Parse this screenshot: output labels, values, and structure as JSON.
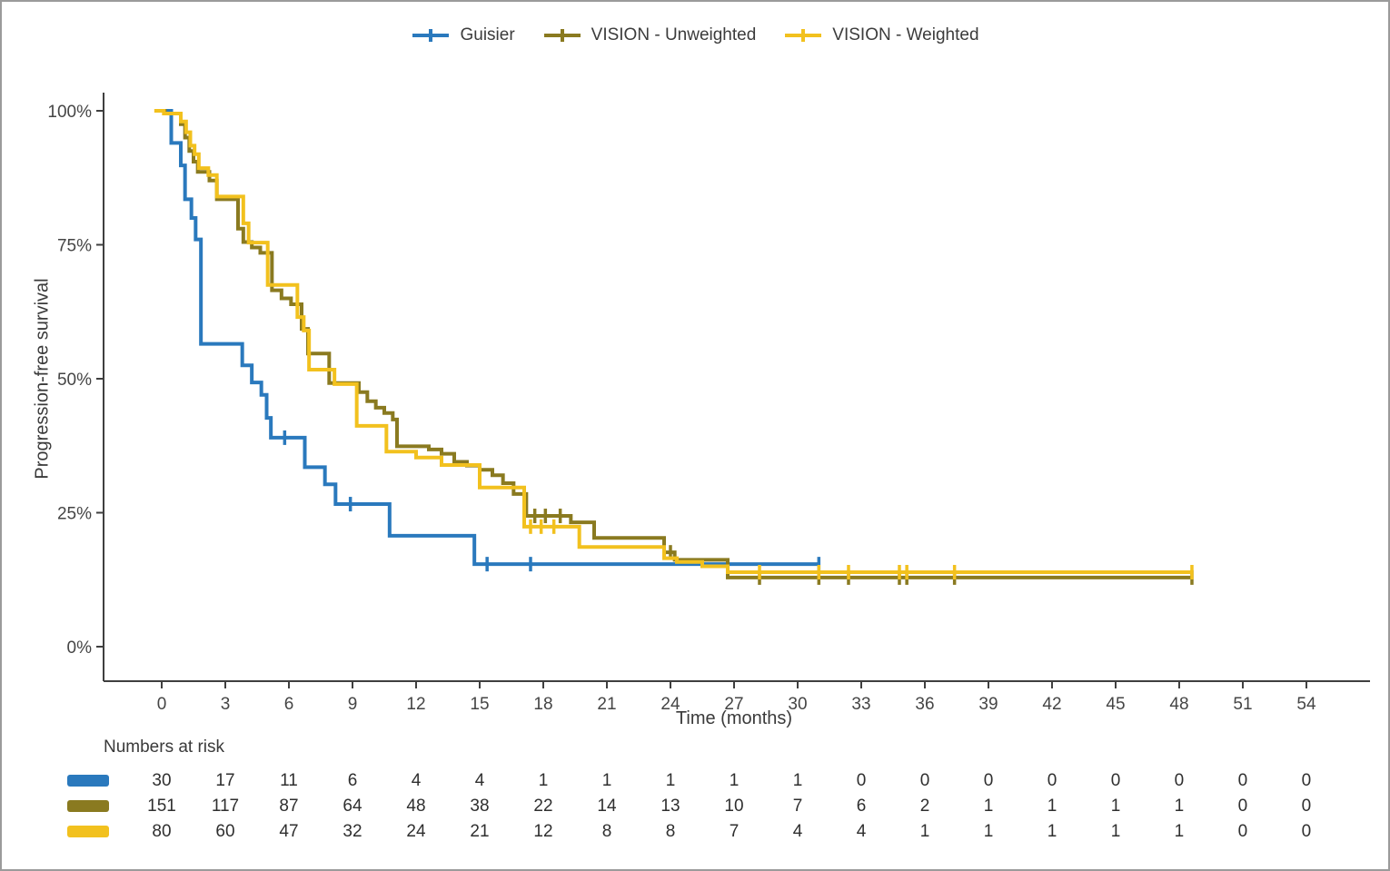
{
  "figure": {
    "background": "#ffffff",
    "border_color": "#9b9b9b"
  },
  "colors": {
    "guisier_blue": "#2a79bd",
    "vision_unweighted_olive": "#8a7a20",
    "vision_weighted_yellow": "#f2c11e",
    "axis": "#3f3f3f",
    "text": "#3a3a3a"
  },
  "chart_data": {
    "type": "line",
    "subtype": "kaplan_meier_step",
    "title": "",
    "xlabel": "Time (months)",
    "ylabel": "Progression-free survival",
    "xlim": [
      -2.7,
      57
    ],
    "ylim": [
      0,
      100
    ],
    "x_ticks": [
      0,
      3,
      6,
      9,
      12,
      15,
      18,
      21,
      24,
      27,
      30,
      33,
      36,
      39,
      42,
      45,
      48,
      51,
      54
    ],
    "y_ticks": [
      {
        "value": 0,
        "label": "0%"
      },
      {
        "value": 25,
        "label": "25%"
      },
      {
        "value": 50,
        "label": "50%"
      },
      {
        "value": 75,
        "label": "75%"
      },
      {
        "value": 100,
        "label": "100%"
      }
    ],
    "grid": false,
    "legend_position": "top-center",
    "series": [
      {
        "name": "Guisier",
        "color": "#2a79bd",
        "marker": "plus-censor-tick",
        "steps": [
          [
            0,
            100
          ],
          [
            0.45,
            94
          ],
          [
            0.9,
            89.8
          ],
          [
            1.1,
            83.5
          ],
          [
            1.4,
            80
          ],
          [
            1.6,
            76
          ],
          [
            1.85,
            56.5
          ],
          [
            3.8,
            52.5
          ],
          [
            4.25,
            49.3
          ],
          [
            4.7,
            47
          ],
          [
            4.95,
            42.7
          ],
          [
            5.15,
            39
          ],
          [
            6.75,
            33.5
          ],
          [
            7.7,
            30.3
          ],
          [
            8.2,
            26.6
          ],
          [
            10.75,
            20.7
          ],
          [
            14.75,
            15.4
          ],
          [
            31.0,
            15.4
          ]
        ],
        "censors": [
          [
            5.8,
            39
          ],
          [
            8.9,
            26.6
          ],
          [
            15.35,
            15.4
          ],
          [
            17.4,
            15.4
          ],
          [
            31.0,
            15.4
          ]
        ]
      },
      {
        "name": "VISION - Unweighted",
        "color": "#8a7a20",
        "marker": "plus-censor-tick",
        "steps": [
          [
            -0.1,
            100
          ],
          [
            0.15,
            99.5
          ],
          [
            0.9,
            97.5
          ],
          [
            1.1,
            95
          ],
          [
            1.3,
            92.5
          ],
          [
            1.5,
            90.5
          ],
          [
            1.7,
            88.6
          ],
          [
            2.25,
            87
          ],
          [
            2.6,
            83.5
          ],
          [
            3.6,
            78
          ],
          [
            3.85,
            75.5
          ],
          [
            4.25,
            74.5
          ],
          [
            4.65,
            73.5
          ],
          [
            5.2,
            66.5
          ],
          [
            5.65,
            65
          ],
          [
            6.1,
            63.9
          ],
          [
            6.6,
            59.3
          ],
          [
            6.9,
            54.7
          ],
          [
            7.9,
            49.2
          ],
          [
            9.3,
            47.5
          ],
          [
            9.7,
            45.8
          ],
          [
            10.1,
            44.6
          ],
          [
            10.5,
            43.6
          ],
          [
            10.9,
            42.4
          ],
          [
            11.1,
            37.4
          ],
          [
            12.6,
            36.8
          ],
          [
            13.2,
            36
          ],
          [
            13.8,
            34.5
          ],
          [
            14.4,
            33.8
          ],
          [
            15.0,
            33
          ],
          [
            15.6,
            32
          ],
          [
            16.1,
            30.5
          ],
          [
            16.6,
            28.5
          ],
          [
            17.2,
            24.4
          ],
          [
            19.3,
            23.2
          ],
          [
            20.4,
            20.3
          ],
          [
            23.7,
            17.6
          ],
          [
            24.2,
            16.2
          ],
          [
            26.7,
            12.9
          ],
          [
            48.6,
            12.9
          ]
        ],
        "censors": [
          [
            17.6,
            24.4
          ],
          [
            18.1,
            24.4
          ],
          [
            18.8,
            24.4
          ],
          [
            24.0,
            17.6
          ],
          [
            28.2,
            12.9
          ],
          [
            31.0,
            12.9
          ],
          [
            32.4,
            12.9
          ],
          [
            34.8,
            12.9
          ],
          [
            35.15,
            12.9
          ],
          [
            37.4,
            12.9
          ],
          [
            48.6,
            12.9
          ]
        ]
      },
      {
        "name": "VISION - Weighted",
        "color": "#f2c11e",
        "marker": "plus-censor-tick",
        "steps": [
          [
            -0.35,
            100
          ],
          [
            0.1,
            99.5
          ],
          [
            0.9,
            98
          ],
          [
            1.15,
            96
          ],
          [
            1.35,
            93.5
          ],
          [
            1.55,
            91.9
          ],
          [
            1.75,
            89.3
          ],
          [
            2.2,
            88
          ],
          [
            2.6,
            84
          ],
          [
            3.85,
            79
          ],
          [
            4.1,
            75.4
          ],
          [
            5.0,
            67.5
          ],
          [
            6.4,
            61.5
          ],
          [
            6.7,
            59
          ],
          [
            6.95,
            51.7
          ],
          [
            8.15,
            49
          ],
          [
            9.2,
            41.2
          ],
          [
            10.6,
            36.4
          ],
          [
            12.0,
            35.3
          ],
          [
            13.2,
            33.9
          ],
          [
            15.0,
            29.7
          ],
          [
            17.1,
            22.4
          ],
          [
            19.7,
            18.6
          ],
          [
            23.7,
            16.5
          ],
          [
            24.3,
            15.8
          ],
          [
            25.5,
            15.0
          ],
          [
            26.7,
            13.9
          ],
          [
            48.6,
            13.9
          ]
        ],
        "censors": [
          [
            17.4,
            22.4
          ],
          [
            17.9,
            22.4
          ],
          [
            18.5,
            22.4
          ],
          [
            28.2,
            13.9
          ],
          [
            31.0,
            13.9
          ],
          [
            32.4,
            13.9
          ],
          [
            34.8,
            13.9
          ],
          [
            35.15,
            13.9
          ],
          [
            37.4,
            13.9
          ],
          [
            48.6,
            13.9
          ]
        ]
      }
    ],
    "numbers_at_risk": {
      "label": "Numbers at risk",
      "months": [
        0,
        3,
        6,
        9,
        12,
        15,
        18,
        21,
        24,
        27,
        30,
        33,
        36,
        39,
        42,
        45,
        48,
        51,
        54
      ],
      "rows": [
        {
          "series": "Guisier",
          "color": "#2a79bd",
          "values": [
            30,
            17,
            11,
            6,
            4,
            4,
            1,
            1,
            1,
            1,
            1,
            0,
            0,
            0,
            0,
            0,
            0,
            0,
            0
          ]
        },
        {
          "series": "VISION - Unweighted",
          "color": "#8a7a20",
          "values": [
            151,
            117,
            87,
            64,
            48,
            38,
            22,
            14,
            13,
            10,
            7,
            6,
            2,
            1,
            1,
            1,
            1,
            0,
            0
          ]
        },
        {
          "series": "VISION - Weighted",
          "color": "#f2c11e",
          "values": [
            80,
            60,
            47,
            32,
            24,
            21,
            12,
            8,
            8,
            7,
            4,
            4,
            1,
            1,
            1,
            1,
            1,
            0,
            0
          ]
        }
      ]
    }
  }
}
